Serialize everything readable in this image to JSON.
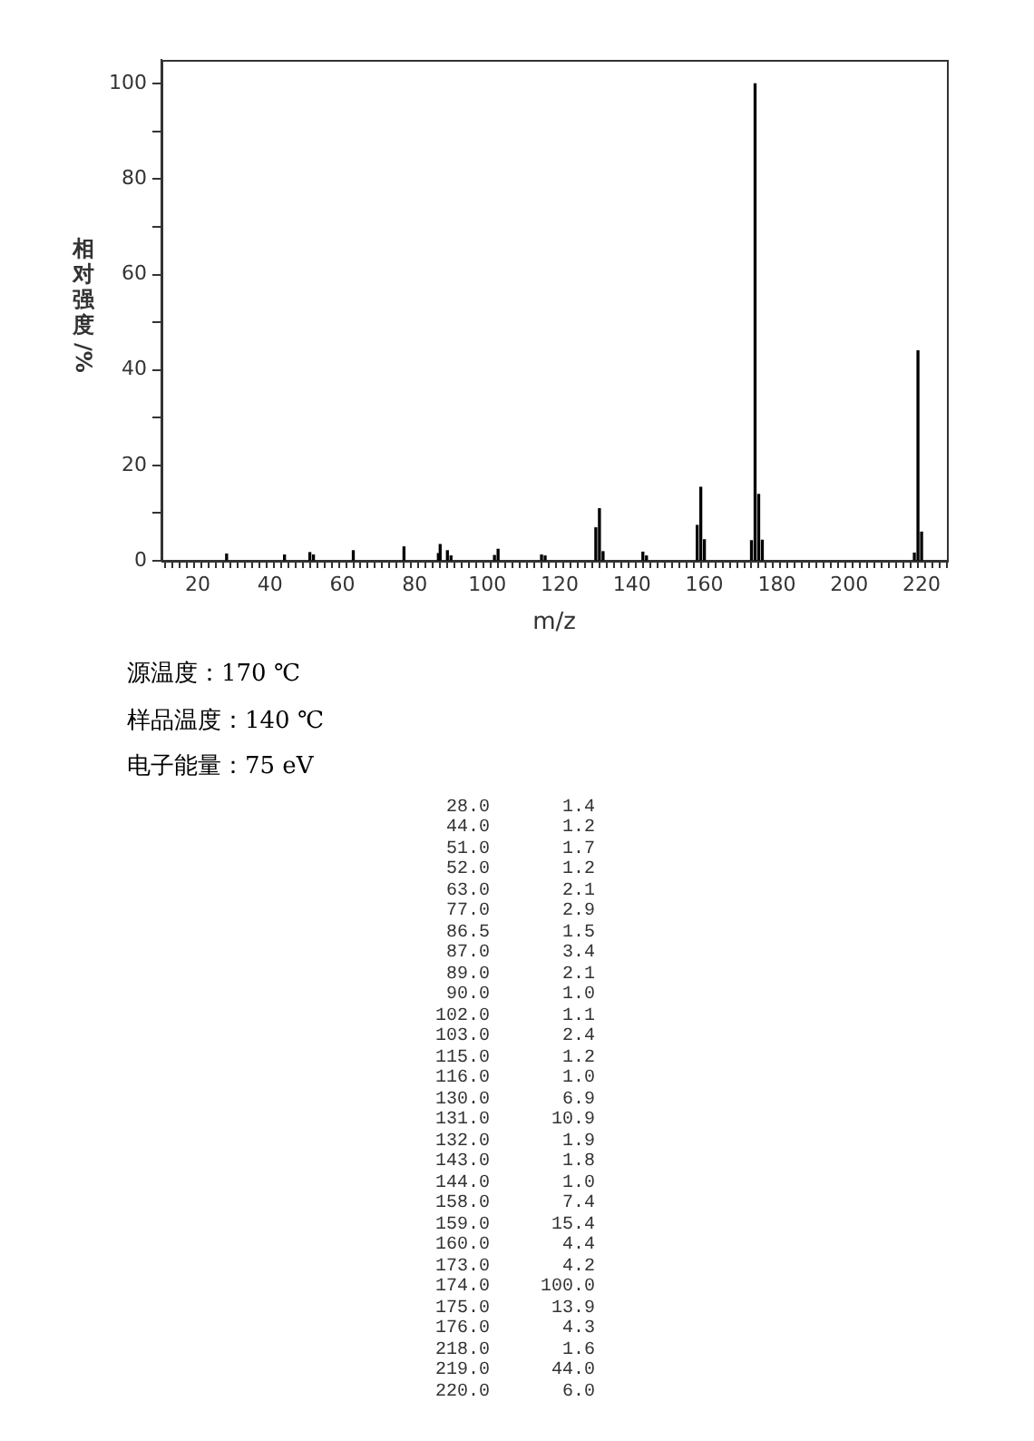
{
  "chart_data": {
    "type": "bar",
    "xlabel": "m/z",
    "ylabel": "相对强度/%",
    "x": [
      28.0,
      44.0,
      51.0,
      52.0,
      63.0,
      77.0,
      86.5,
      87.0,
      89.0,
      90.0,
      102.0,
      103.0,
      115.0,
      116.0,
      130.0,
      131.0,
      132.0,
      143.0,
      144.0,
      158.0,
      159.0,
      160.0,
      173.0,
      174.0,
      175.0,
      176.0,
      218.0,
      219.0,
      220.0
    ],
    "values": [
      1.4,
      1.2,
      1.7,
      1.2,
      2.1,
      2.9,
      1.5,
      3.4,
      2.1,
      1.0,
      1.1,
      2.4,
      1.2,
      1.0,
      6.9,
      10.9,
      1.9,
      1.8,
      1.0,
      7.4,
      15.4,
      4.4,
      4.2,
      100.0,
      13.9,
      4.3,
      1.6,
      44.0,
      6.0
    ],
    "color": "#000000",
    "xlim": [
      10,
      227
    ],
    "xticks": [
      {
        "value": 12,
        "label": null
      },
      {
        "value": 14,
        "label": null
      },
      {
        "value": 16,
        "label": null
      },
      {
        "value": 18,
        "label": null
      },
      20,
      {
        "value": 22,
        "label": null
      },
      {
        "value": 24,
        "label": null
      },
      {
        "value": 26,
        "label": null
      },
      {
        "value": 28,
        "label": null
      },
      {
        "value": 30,
        "label": null
      },
      {
        "value": 32,
        "label": null
      },
      {
        "value": 34,
        "label": null
      },
      {
        "value": 36,
        "label": null
      },
      {
        "value": 38,
        "label": null
      },
      40,
      {
        "value": 42,
        "label": null
      },
      {
        "value": 44,
        "label": null
      },
      {
        "value": 46,
        "label": null
      },
      {
        "value": 48,
        "label": null
      },
      {
        "value": 50,
        "label": null
      },
      {
        "value": 52,
        "label": null
      },
      {
        "value": 54,
        "label": null
      },
      {
        "value": 56,
        "label": null
      },
      {
        "value": 58,
        "label": null
      },
      60,
      {
        "value": 62,
        "label": null
      },
      {
        "value": 64,
        "label": null
      },
      {
        "value": 66,
        "label": null
      },
      {
        "value": 68,
        "label": null
      },
      {
        "value": 70,
        "label": null
      },
      {
        "value": 72,
        "label": null
      },
      {
        "value": 74,
        "label": null
      },
      {
        "value": 76,
        "label": null
      },
      {
        "value": 78,
        "label": null
      },
      80,
      {
        "value": 82,
        "label": null
      },
      {
        "value": 84,
        "label": null
      },
      {
        "value": 86,
        "label": null
      },
      {
        "value": 88,
        "label": null
      },
      {
        "value": 90,
        "label": null
      },
      {
        "value": 92,
        "label": null
      },
      {
        "value": 94,
        "label": null
      },
      {
        "value": 96,
        "label": null
      },
      {
        "value": 98,
        "label": null
      },
      100,
      {
        "value": 102,
        "label": null
      },
      {
        "value": 104,
        "label": null
      },
      {
        "value": 106,
        "label": null
      },
      {
        "value": 108,
        "label": null
      },
      {
        "value": 110,
        "label": null
      },
      {
        "value": 112,
        "label": null
      },
      {
        "value": 114,
        "label": null
      },
      {
        "value": 116,
        "label": null
      },
      {
        "value": 118,
        "label": null
      },
      120,
      {
        "value": 122,
        "label": null
      },
      {
        "value": 124,
        "label": null
      },
      {
        "value": 126,
        "label": null
      },
      {
        "value": 128,
        "label": null
      },
      {
        "value": 130,
        "label": null
      },
      {
        "value": 132,
        "label": null
      },
      {
        "value": 134,
        "label": null
      },
      {
        "value": 136,
        "label": null
      },
      {
        "value": 138,
        "label": null
      },
      140,
      {
        "value": 142,
        "label": null
      },
      {
        "value": 144,
        "label": null
      },
      {
        "value": 146,
        "label": null
      },
      {
        "value": 148,
        "label": null
      },
      {
        "value": 150,
        "label": null
      },
      {
        "value": 152,
        "label": null
      },
      {
        "value": 154,
        "label": null
      },
      {
        "value": 156,
        "label": null
      },
      {
        "value": 158,
        "label": null
      },
      160,
      {
        "value": 162,
        "label": null
      },
      {
        "value": 164,
        "label": null
      },
      {
        "value": 166,
        "label": null
      },
      {
        "value": 168,
        "label": null
      },
      {
        "value": 170,
        "label": null
      },
      {
        "value": 172,
        "label": null
      },
      {
        "value": 174,
        "label": null
      },
      {
        "value": 176,
        "label": null
      },
      {
        "value": 178,
        "label": null
      },
      180,
      {
        "value": 182,
        "label": null
      },
      {
        "value": 184,
        "label": null
      },
      {
        "value": 186,
        "label": null
      },
      {
        "value": 188,
        "label": null
      },
      {
        "value": 190,
        "label": null
      },
      {
        "value": 192,
        "label": null
      },
      {
        "value": 194,
        "label": null
      },
      {
        "value": 196,
        "label": null
      },
      {
        "value": 198,
        "label": null
      },
      200,
      {
        "value": 202,
        "label": null
      },
      {
        "value": 204,
        "label": null
      },
      {
        "value": 206,
        "label": null
      },
      {
        "value": 208,
        "label": null
      },
      {
        "value": 210,
        "label": null
      },
      {
        "value": 212,
        "label": null
      },
      {
        "value": 214,
        "label": null
      },
      {
        "value": 216,
        "label": null
      },
      {
        "value": 218,
        "label": null
      },
      220,
      {
        "value": 222,
        "label": null
      },
      {
        "value": 224,
        "label": null
      },
      {
        "value": 226,
        "label": null
      }
    ],
    "ylim": [
      0,
      105
    ],
    "yticks": [
      0,
      {
        "value": 10,
        "label": null
      },
      20,
      {
        "value": 30,
        "label": null
      },
      40,
      {
        "value": 50,
        "label": null
      },
      60,
      {
        "value": 70,
        "label": null
      },
      80,
      {
        "value": 90,
        "label": null
      },
      100
    ],
    "legend": false,
    "annotations": [
      "源温度：170 ℃",
      "样品温度：140 ℃",
      "电子能量：75 eV",
      "28.0",
      "1.4",
      "44.0",
      "1.2",
      "51.0",
      "1.7",
      "52.0",
      "1.2",
      "63.0",
      "2.1",
      "77.0",
      "2.9",
      "86.5",
      "1.5",
      "87.0",
      "3.4",
      "89.0",
      "2.1",
      "90.0",
      "1.0",
      "102.0",
      "1.1",
      "103.0",
      "2.4",
      "115.0",
      "1.2",
      "116.0",
      "1.0",
      "130.0",
      "6.9",
      "131.0",
      "10.9",
      "132.0",
      "1.9",
      "143.0",
      "1.8",
      "144.0",
      "1.0",
      "158.0",
      "7.4",
      "159.0",
      "15.4",
      "160.0",
      "4.4",
      "173.0",
      "4.2",
      "174.0",
      "100.0",
      "175.0",
      "13.9",
      "176.0",
      "4.3",
      "218.0",
      "1.6",
      "219.0",
      "44.0",
      "220.0",
      "6.0"
    ]
  }
}
